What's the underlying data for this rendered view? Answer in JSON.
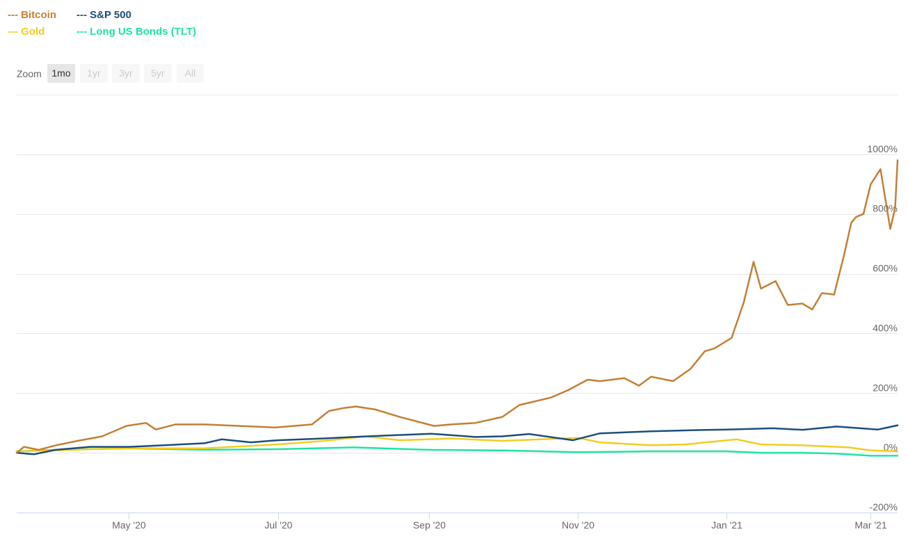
{
  "legend": [
    {
      "label": "--- Bitcoin",
      "color": "#c47f34"
    },
    {
      "label": "--- S&P 500",
      "color": "#1c4e7d"
    },
    {
      "label": "--- Gold",
      "color": "#f2cd1f"
    },
    {
      "label": "--- Long US Bonds (TLT)",
      "color": "#1ee4a6"
    }
  ],
  "zoom": {
    "label": "Zoom",
    "buttons": [
      "1mo",
      "1yr",
      "3yr",
      "5yr",
      "All"
    ],
    "selected": "1mo"
  },
  "chart_data": {
    "type": "line",
    "title": "",
    "xlabel": "",
    "ylabel": "",
    "x_range": [
      "2020-03-16",
      "2021-03-12"
    ],
    "ylim": [
      -200,
      1200
    ],
    "y_ticks": [
      "1000%",
      "800%",
      "600%",
      "400%",
      "200%",
      "0%",
      "-200%"
    ],
    "y_tick_values": [
      1000,
      800,
      600,
      400,
      200,
      0,
      -200
    ],
    "x_ticks": [
      {
        "date": "2020-05-01",
        "label": "May '20"
      },
      {
        "date": "2020-07-01",
        "label": "Jul '20"
      },
      {
        "date": "2020-09-01",
        "label": "Sep '20"
      },
      {
        "date": "2020-11-01",
        "label": "Nov '20"
      },
      {
        "date": "2021-01-01",
        "label": "Jan '21"
      },
      {
        "date": "2021-03-01",
        "label": "Mar '21"
      }
    ],
    "grid": true,
    "legend_position": "top-left",
    "series": [
      {
        "name": "Bitcoin",
        "color": "#c47f34",
        "x": [
          "2020-03-16",
          "2020-03-19",
          "2020-03-25",
          "2020-04-01",
          "2020-04-10",
          "2020-04-20",
          "2020-04-30",
          "2020-05-08",
          "2020-05-12",
          "2020-05-20",
          "2020-06-01",
          "2020-06-15",
          "2020-06-30",
          "2020-07-15",
          "2020-07-22",
          "2020-07-28",
          "2020-08-02",
          "2020-08-10",
          "2020-08-20",
          "2020-09-03",
          "2020-09-10",
          "2020-09-20",
          "2020-10-01",
          "2020-10-08",
          "2020-10-21",
          "2020-10-28",
          "2020-11-05",
          "2020-11-10",
          "2020-11-20",
          "2020-11-26",
          "2020-12-01",
          "2020-12-10",
          "2020-12-17",
          "2020-12-23",
          "2020-12-27",
          "2021-01-03",
          "2021-01-08",
          "2021-01-12",
          "2021-01-15",
          "2021-01-21",
          "2021-01-26",
          "2021-02-01",
          "2021-02-05",
          "2021-02-09",
          "2021-02-14",
          "2021-02-18",
          "2021-02-21",
          "2021-02-23",
          "2021-02-26",
          "2021-03-01",
          "2021-03-05",
          "2021-03-09",
          "2021-03-11",
          "2021-03-12"
        ],
        "values": [
          0,
          20,
          10,
          25,
          40,
          55,
          90,
          100,
          78,
          95,
          95,
          90,
          85,
          95,
          140,
          150,
          155,
          145,
          120,
          90,
          95,
          100,
          120,
          160,
          185,
          210,
          245,
          240,
          250,
          225,
          255,
          240,
          280,
          340,
          350,
          385,
          505,
          640,
          550,
          575,
          495,
          500,
          480,
          535,
          530,
          660,
          770,
          790,
          800,
          900,
          950,
          750,
          820,
          980
        ]
      },
      {
        "name": "S&P 500",
        "color": "#1c4e7d",
        "x": [
          "2020-03-16",
          "2020-03-23",
          "2020-04-01",
          "2020-04-15",
          "2020-05-01",
          "2020-05-15",
          "2020-06-01",
          "2020-06-08",
          "2020-06-20",
          "2020-07-01",
          "2020-07-20",
          "2020-08-01",
          "2020-08-15",
          "2020-09-02",
          "2020-09-20",
          "2020-10-01",
          "2020-10-12",
          "2020-10-30",
          "2020-11-10",
          "2020-12-01",
          "2020-12-20",
          "2021-01-01",
          "2021-01-20",
          "2021-02-01",
          "2021-02-15",
          "2021-03-04",
          "2021-03-12"
        ],
        "values": [
          0,
          -5,
          10,
          20,
          20,
          25,
          32,
          45,
          35,
          42,
          48,
          53,
          58,
          64,
          53,
          55,
          63,
          42,
          65,
          72,
          76,
          78,
          82,
          77,
          88,
          78,
          92
        ]
      },
      {
        "name": "Gold",
        "color": "#f2cd1f",
        "x": [
          "2020-03-16",
          "2020-04-01",
          "2020-04-15",
          "2020-05-01",
          "2020-06-01",
          "2020-07-01",
          "2020-07-20",
          "2020-08-06",
          "2020-08-20",
          "2020-09-10",
          "2020-10-01",
          "2020-11-01",
          "2020-11-10",
          "2020-12-01",
          "2020-12-15",
          "2021-01-05",
          "2021-01-15",
          "2021-02-01",
          "2021-02-20",
          "2021-03-01",
          "2021-03-12"
        ],
        "values": [
          5,
          8,
          12,
          15,
          15,
          28,
          40,
          55,
          42,
          48,
          40,
          50,
          35,
          25,
          28,
          45,
          28,
          25,
          18,
          8,
          5
        ]
      },
      {
        "name": "Long US Bonds (TLT)",
        "color": "#1ee4a6",
        "x": [
          "2020-03-16",
          "2020-04-01",
          "2020-05-01",
          "2020-06-01",
          "2020-07-01",
          "2020-08-01",
          "2020-09-01",
          "2020-10-01",
          "2020-11-01",
          "2020-12-01",
          "2021-01-01",
          "2021-01-15",
          "2021-02-01",
          "2021-02-15",
          "2021-03-01",
          "2021-03-12"
        ],
        "values": [
          5,
          10,
          15,
          10,
          12,
          18,
          10,
          8,
          2,
          5,
          5,
          0,
          0,
          -3,
          -10,
          -10
        ]
      }
    ]
  }
}
